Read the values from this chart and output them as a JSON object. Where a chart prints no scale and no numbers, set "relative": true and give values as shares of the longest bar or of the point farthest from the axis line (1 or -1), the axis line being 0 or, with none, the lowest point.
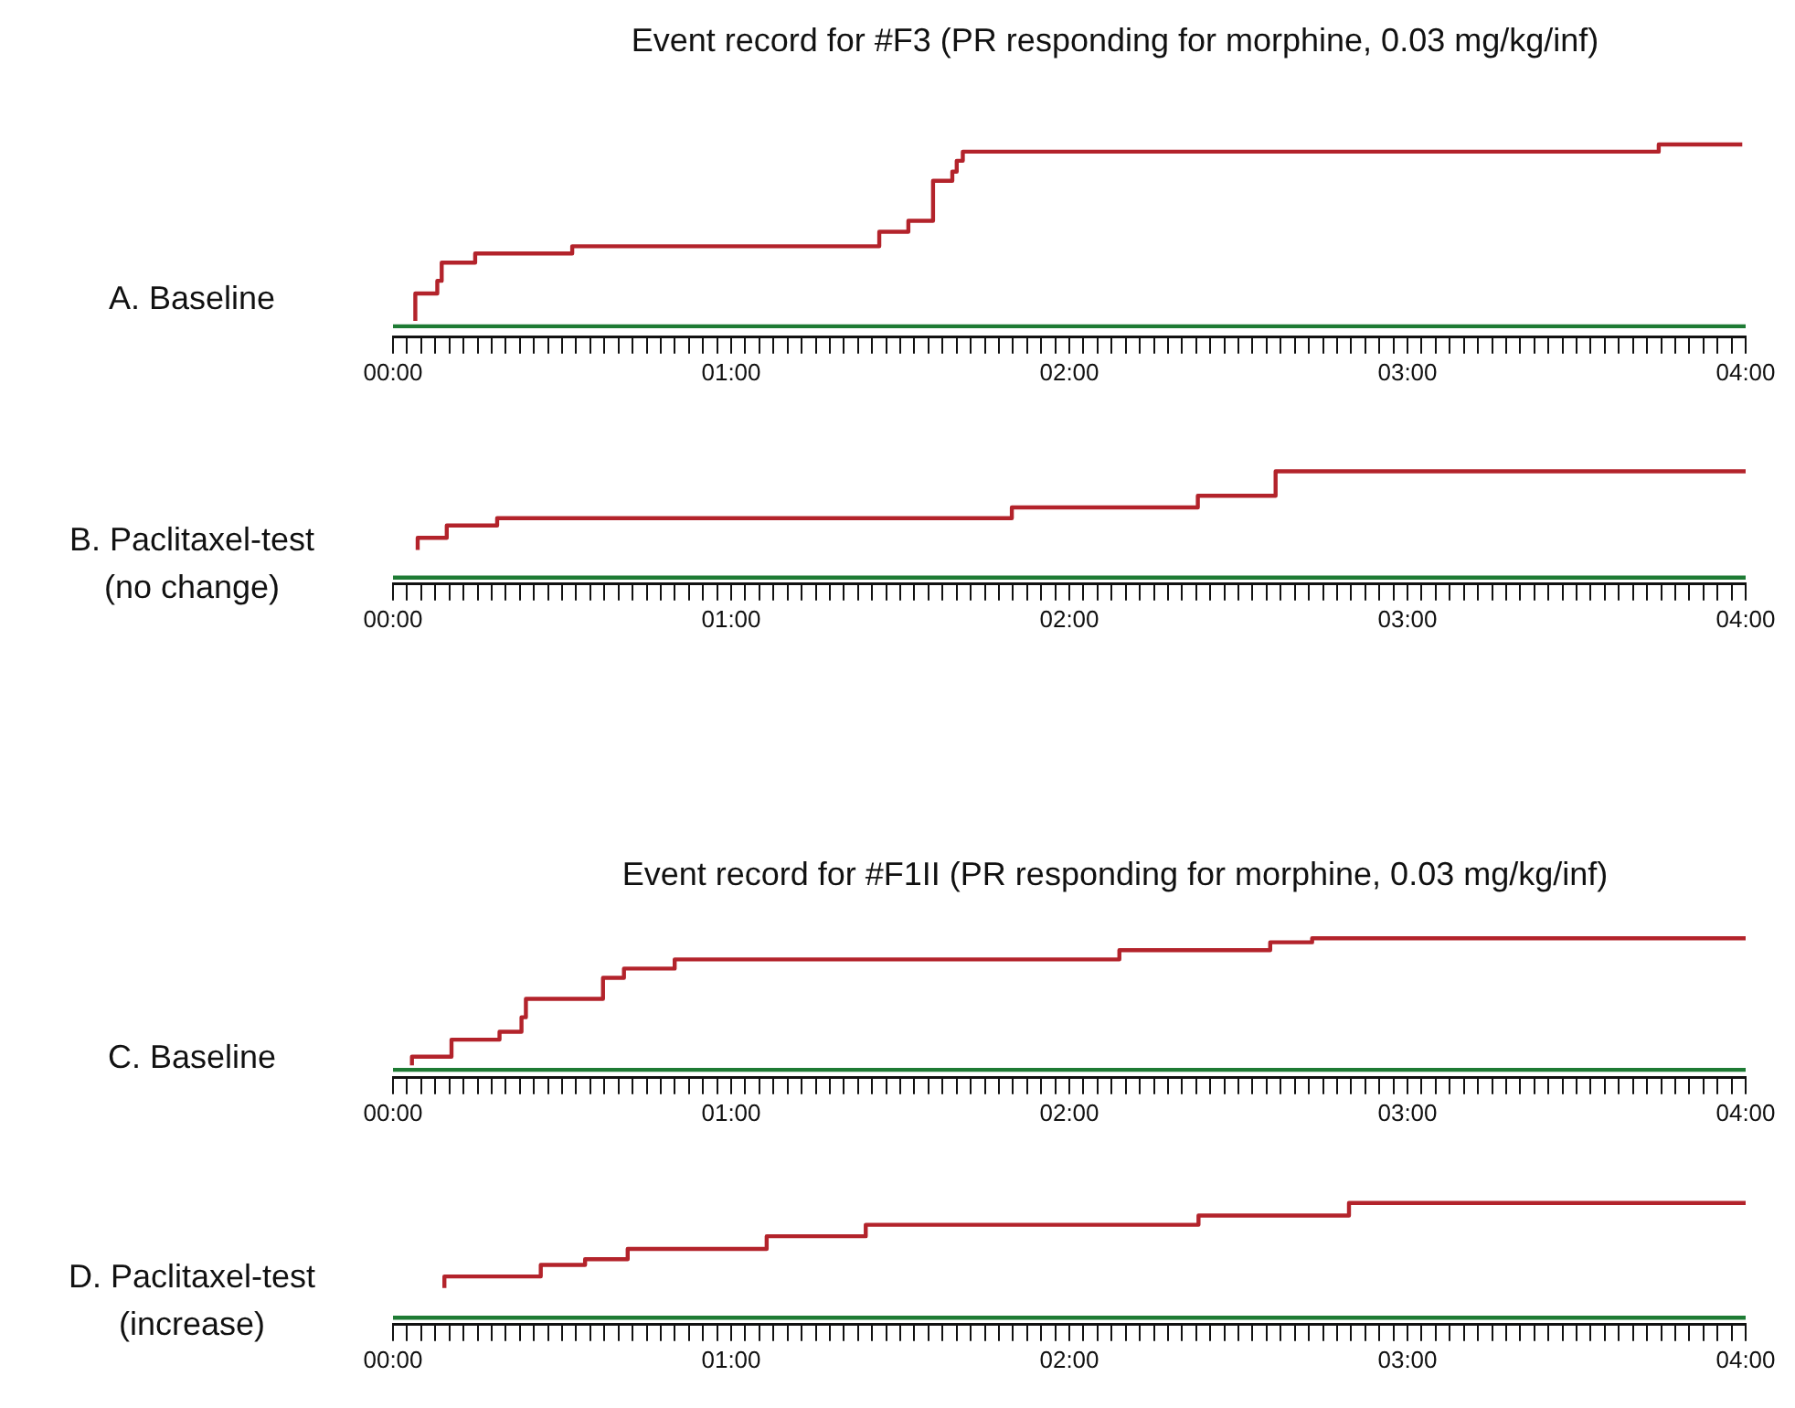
{
  "chart_data": [
    {
      "type": "step",
      "title": "Event record for #F3 (PR responding for morphine, 0.03 mg/kg/inf)",
      "ylabel": "A. Baseline",
      "relative": true,
      "xlim": [
        0,
        4
      ],
      "grid": false,
      "legend": false,
      "marker": "none",
      "xticks": [
        {
          "value": 0,
          "label": "00:00"
        },
        {
          "value": 0.0417,
          "label": null
        },
        {
          "value": 0.0833,
          "label": null
        },
        {
          "value": 0.125,
          "label": null
        },
        {
          "value": 0.1667,
          "label": null
        },
        {
          "value": 0.2083,
          "label": null
        },
        {
          "value": 0.25,
          "label": null
        },
        {
          "value": 0.2917,
          "label": null
        },
        {
          "value": 0.3333,
          "label": null
        },
        {
          "value": 0.375,
          "label": null
        },
        {
          "value": 0.4167,
          "label": null
        },
        {
          "value": 0.4583,
          "label": null
        },
        {
          "value": 0.5,
          "label": null
        },
        {
          "value": 0.5417,
          "label": null
        },
        {
          "value": 0.5833,
          "label": null
        },
        {
          "value": 0.625,
          "label": null
        },
        {
          "value": 0.6667,
          "label": null
        },
        {
          "value": 0.7083,
          "label": null
        },
        {
          "value": 0.75,
          "label": null
        },
        {
          "value": 0.7917,
          "label": null
        },
        {
          "value": 0.8333,
          "label": null
        },
        {
          "value": 0.875,
          "label": null
        },
        {
          "value": 0.9167,
          "label": null
        },
        {
          "value": 0.9583,
          "label": null
        },
        {
          "value": 1,
          "label": "01:00"
        },
        {
          "value": 1.0417,
          "label": null
        },
        {
          "value": 1.0833,
          "label": null
        },
        {
          "value": 1.125,
          "label": null
        },
        {
          "value": 1.1667,
          "label": null
        },
        {
          "value": 1.2083,
          "label": null
        },
        {
          "value": 1.25,
          "label": null
        },
        {
          "value": 1.2917,
          "label": null
        },
        {
          "value": 1.3333,
          "label": null
        },
        {
          "value": 1.375,
          "label": null
        },
        {
          "value": 1.4167,
          "label": null
        },
        {
          "value": 1.4583,
          "label": null
        },
        {
          "value": 1.5,
          "label": null
        },
        {
          "value": 1.5417,
          "label": null
        },
        {
          "value": 1.5833,
          "label": null
        },
        {
          "value": 1.625,
          "label": null
        },
        {
          "value": 1.6667,
          "label": null
        },
        {
          "value": 1.7083,
          "label": null
        },
        {
          "value": 1.75,
          "label": null
        },
        {
          "value": 1.7917,
          "label": null
        },
        {
          "value": 1.8333,
          "label": null
        },
        {
          "value": 1.875,
          "label": null
        },
        {
          "value": 1.9167,
          "label": null
        },
        {
          "value": 1.9583,
          "label": null
        },
        {
          "value": 2,
          "label": "02:00"
        },
        {
          "value": 2.0417,
          "label": null
        },
        {
          "value": 2.0833,
          "label": null
        },
        {
          "value": 2.125,
          "label": null
        },
        {
          "value": 2.1667,
          "label": null
        },
        {
          "value": 2.2083,
          "label": null
        },
        {
          "value": 2.25,
          "label": null
        },
        {
          "value": 2.2917,
          "label": null
        },
        {
          "value": 2.3333,
          "label": null
        },
        {
          "value": 2.375,
          "label": null
        },
        {
          "value": 2.4167,
          "label": null
        },
        {
          "value": 2.4583,
          "label": null
        },
        {
          "value": 2.5,
          "label": null
        },
        {
          "value": 2.5417,
          "label": null
        },
        {
          "value": 2.5833,
          "label": null
        },
        {
          "value": 2.625,
          "label": null
        },
        {
          "value": 2.6667,
          "label": null
        },
        {
          "value": 2.7083,
          "label": null
        },
        {
          "value": 2.75,
          "label": null
        },
        {
          "value": 2.7917,
          "label": null
        },
        {
          "value": 2.8333,
          "label": null
        },
        {
          "value": 2.875,
          "label": null
        },
        {
          "value": 2.9167,
          "label": null
        },
        {
          "value": 2.9583,
          "label": null
        },
        {
          "value": 3,
          "label": "03:00"
        },
        {
          "value": 3.0417,
          "label": null
        },
        {
          "value": 3.0833,
          "label": null
        },
        {
          "value": 3.125,
          "label": null
        },
        {
          "value": 3.1667,
          "label": null
        },
        {
          "value": 3.2083,
          "label": null
        },
        {
          "value": 3.25,
          "label": null
        },
        {
          "value": 3.2917,
          "label": null
        },
        {
          "value": 3.3333,
          "label": null
        },
        {
          "value": 3.375,
          "label": null
        },
        {
          "value": 3.4167,
          "label": null
        },
        {
          "value": 3.4583,
          "label": null
        },
        {
          "value": 3.5,
          "label": null
        },
        {
          "value": 3.5417,
          "label": null
        },
        {
          "value": 3.5833,
          "label": null
        },
        {
          "value": 3.625,
          "label": null
        },
        {
          "value": 3.6667,
          "label": null
        },
        {
          "value": 3.7083,
          "label": null
        },
        {
          "value": 3.75,
          "label": null
        },
        {
          "value": 3.7917,
          "label": null
        },
        {
          "value": 3.8333,
          "label": null
        },
        {
          "value": 3.875,
          "label": null
        },
        {
          "value": 3.9167,
          "label": null
        },
        {
          "value": 3.9583,
          "label": null
        },
        {
          "value": 4,
          "label": "04:00"
        }
      ],
      "series": [
        {
          "type": "line",
          "color": "#1e7b34",
          "x": [
            0,
            4
          ],
          "values": [
            0,
            0
          ]
        },
        {
          "color": "#b3232b",
          "x": [
            0.066,
            0.131,
            0.144,
            0.243,
            0.53,
            1.438,
            1.524,
            1.597,
            1.654,
            1.667,
            1.685,
            3.743,
            3.946,
            3.99
          ],
          "values": [
            0.03,
            0.18,
            0.25,
            0.35,
            0.4,
            0.44,
            0.52,
            0.58,
            0.8,
            0.85,
            0.91,
            0.96,
            1,
            1
          ]
        }
      ]
    },
    {
      "type": "step",
      "ylabel": "B. Paclitaxel-test\n(no change)",
      "relative": true,
      "xlim": [
        0,
        4
      ],
      "grid": false,
      "legend": false,
      "marker": "none",
      "xticks": [
        {
          "value": 0,
          "label": "00:00"
        },
        {
          "value": 0.0417,
          "label": null
        },
        {
          "value": 0.0833,
          "label": null
        },
        {
          "value": 0.125,
          "label": null
        },
        {
          "value": 0.1667,
          "label": null
        },
        {
          "value": 0.2083,
          "label": null
        },
        {
          "value": 0.25,
          "label": null
        },
        {
          "value": 0.2917,
          "label": null
        },
        {
          "value": 0.3333,
          "label": null
        },
        {
          "value": 0.375,
          "label": null
        },
        {
          "value": 0.4167,
          "label": null
        },
        {
          "value": 0.4583,
          "label": null
        },
        {
          "value": 0.5,
          "label": null
        },
        {
          "value": 0.5417,
          "label": null
        },
        {
          "value": 0.5833,
          "label": null
        },
        {
          "value": 0.625,
          "label": null
        },
        {
          "value": 0.6667,
          "label": null
        },
        {
          "value": 0.7083,
          "label": null
        },
        {
          "value": 0.75,
          "label": null
        },
        {
          "value": 0.7917,
          "label": null
        },
        {
          "value": 0.8333,
          "label": null
        },
        {
          "value": 0.875,
          "label": null
        },
        {
          "value": 0.9167,
          "label": null
        },
        {
          "value": 0.9583,
          "label": null
        },
        {
          "value": 1,
          "label": "01:00"
        },
        {
          "value": 1.0417,
          "label": null
        },
        {
          "value": 1.0833,
          "label": null
        },
        {
          "value": 1.125,
          "label": null
        },
        {
          "value": 1.1667,
          "label": null
        },
        {
          "value": 1.2083,
          "label": null
        },
        {
          "value": 1.25,
          "label": null
        },
        {
          "value": 1.2917,
          "label": null
        },
        {
          "value": 1.3333,
          "label": null
        },
        {
          "value": 1.375,
          "label": null
        },
        {
          "value": 1.4167,
          "label": null
        },
        {
          "value": 1.4583,
          "label": null
        },
        {
          "value": 1.5,
          "label": null
        },
        {
          "value": 1.5417,
          "label": null
        },
        {
          "value": 1.5833,
          "label": null
        },
        {
          "value": 1.625,
          "label": null
        },
        {
          "value": 1.6667,
          "label": null
        },
        {
          "value": 1.7083,
          "label": null
        },
        {
          "value": 1.75,
          "label": null
        },
        {
          "value": 1.7917,
          "label": null
        },
        {
          "value": 1.8333,
          "label": null
        },
        {
          "value": 1.875,
          "label": null
        },
        {
          "value": 1.9167,
          "label": null
        },
        {
          "value": 1.9583,
          "label": null
        },
        {
          "value": 2,
          "label": "02:00"
        },
        {
          "value": 2.0417,
          "label": null
        },
        {
          "value": 2.0833,
          "label": null
        },
        {
          "value": 2.125,
          "label": null
        },
        {
          "value": 2.1667,
          "label": null
        },
        {
          "value": 2.2083,
          "label": null
        },
        {
          "value": 2.25,
          "label": null
        },
        {
          "value": 2.2917,
          "label": null
        },
        {
          "value": 2.3333,
          "label": null
        },
        {
          "value": 2.375,
          "label": null
        },
        {
          "value": 2.4167,
          "label": null
        },
        {
          "value": 2.4583,
          "label": null
        },
        {
          "value": 2.5,
          "label": null
        },
        {
          "value": 2.5417,
          "label": null
        },
        {
          "value": 2.5833,
          "label": null
        },
        {
          "value": 2.625,
          "label": null
        },
        {
          "value": 2.6667,
          "label": null
        },
        {
          "value": 2.7083,
          "label": null
        },
        {
          "value": 2.75,
          "label": null
        },
        {
          "value": 2.7917,
          "label": null
        },
        {
          "value": 2.8333,
          "label": null
        },
        {
          "value": 2.875,
          "label": null
        },
        {
          "value": 2.9167,
          "label": null
        },
        {
          "value": 2.9583,
          "label": null
        },
        {
          "value": 3,
          "label": "03:00"
        },
        {
          "value": 3.0417,
          "label": null
        },
        {
          "value": 3.0833,
          "label": null
        },
        {
          "value": 3.125,
          "label": null
        },
        {
          "value": 3.1667,
          "label": null
        },
        {
          "value": 3.2083,
          "label": null
        },
        {
          "value": 3.25,
          "label": null
        },
        {
          "value": 3.2917,
          "label": null
        },
        {
          "value": 3.3333,
          "label": null
        },
        {
          "value": 3.375,
          "label": null
        },
        {
          "value": 3.4167,
          "label": null
        },
        {
          "value": 3.4583,
          "label": null
        },
        {
          "value": 3.5,
          "label": null
        },
        {
          "value": 3.5417,
          "label": null
        },
        {
          "value": 3.5833,
          "label": null
        },
        {
          "value": 3.625,
          "label": null
        },
        {
          "value": 3.6667,
          "label": null
        },
        {
          "value": 3.7083,
          "label": null
        },
        {
          "value": 3.75,
          "label": null
        },
        {
          "value": 3.7917,
          "label": null
        },
        {
          "value": 3.8333,
          "label": null
        },
        {
          "value": 3.875,
          "label": null
        },
        {
          "value": 3.9167,
          "label": null
        },
        {
          "value": 3.9583,
          "label": null
        },
        {
          "value": 4,
          "label": "04:00"
        }
      ],
      "series": [
        {
          "type": "line",
          "color": "#1e7b34",
          "x": [
            0,
            4
          ],
          "values": [
            0,
            0
          ]
        },
        {
          "color": "#b3232b",
          "x": [
            0.073,
            0.159,
            0.308,
            1.83,
            2.38,
            2.61,
            2.78,
            4
          ],
          "values": [
            0.26,
            0.375,
            0.49,
            0.56,
            0.66,
            0.77,
            1,
            1
          ]
        }
      ]
    },
    {
      "type": "step",
      "title": "Event record for #F1II (PR responding for morphine, 0.03 mg/kg/inf)",
      "ylabel": "C. Baseline",
      "relative": true,
      "xlim": [
        0,
        4
      ],
      "grid": false,
      "legend": false,
      "marker": "none",
      "xticks": [
        {
          "value": 0,
          "label": "00:00"
        },
        {
          "value": 0.0417,
          "label": null
        },
        {
          "value": 0.0833,
          "label": null
        },
        {
          "value": 0.125,
          "label": null
        },
        {
          "value": 0.1667,
          "label": null
        },
        {
          "value": 0.2083,
          "label": null
        },
        {
          "value": 0.25,
          "label": null
        },
        {
          "value": 0.2917,
          "label": null
        },
        {
          "value": 0.3333,
          "label": null
        },
        {
          "value": 0.375,
          "label": null
        },
        {
          "value": 0.4167,
          "label": null
        },
        {
          "value": 0.4583,
          "label": null
        },
        {
          "value": 0.5,
          "label": null
        },
        {
          "value": 0.5417,
          "label": null
        },
        {
          "value": 0.5833,
          "label": null
        },
        {
          "value": 0.625,
          "label": null
        },
        {
          "value": 0.6667,
          "label": null
        },
        {
          "value": 0.7083,
          "label": null
        },
        {
          "value": 0.75,
          "label": null
        },
        {
          "value": 0.7917,
          "label": null
        },
        {
          "value": 0.8333,
          "label": null
        },
        {
          "value": 0.875,
          "label": null
        },
        {
          "value": 0.9167,
          "label": null
        },
        {
          "value": 0.9583,
          "label": null
        },
        {
          "value": 1,
          "label": "01:00"
        },
        {
          "value": 1.0417,
          "label": null
        },
        {
          "value": 1.0833,
          "label": null
        },
        {
          "value": 1.125,
          "label": null
        },
        {
          "value": 1.1667,
          "label": null
        },
        {
          "value": 1.2083,
          "label": null
        },
        {
          "value": 1.25,
          "label": null
        },
        {
          "value": 1.2917,
          "label": null
        },
        {
          "value": 1.3333,
          "label": null
        },
        {
          "value": 1.375,
          "label": null
        },
        {
          "value": 1.4167,
          "label": null
        },
        {
          "value": 1.4583,
          "label": null
        },
        {
          "value": 1.5,
          "label": null
        },
        {
          "value": 1.5417,
          "label": null
        },
        {
          "value": 1.5833,
          "label": null
        },
        {
          "value": 1.625,
          "label": null
        },
        {
          "value": 1.6667,
          "label": null
        },
        {
          "value": 1.7083,
          "label": null
        },
        {
          "value": 1.75,
          "label": null
        },
        {
          "value": 1.7917,
          "label": null
        },
        {
          "value": 1.8333,
          "label": null
        },
        {
          "value": 1.875,
          "label": null
        },
        {
          "value": 1.9167,
          "label": null
        },
        {
          "value": 1.9583,
          "label": null
        },
        {
          "value": 2,
          "label": "02:00"
        },
        {
          "value": 2.0417,
          "label": null
        },
        {
          "value": 2.0833,
          "label": null
        },
        {
          "value": 2.125,
          "label": null
        },
        {
          "value": 2.1667,
          "label": null
        },
        {
          "value": 2.2083,
          "label": null
        },
        {
          "value": 2.25,
          "label": null
        },
        {
          "value": 2.2917,
          "label": null
        },
        {
          "value": 2.3333,
          "label": null
        },
        {
          "value": 2.375,
          "label": null
        },
        {
          "value": 2.4167,
          "label": null
        },
        {
          "value": 2.4583,
          "label": null
        },
        {
          "value": 2.5,
          "label": null
        },
        {
          "value": 2.5417,
          "label": null
        },
        {
          "value": 2.5833,
          "label": null
        },
        {
          "value": 2.625,
          "label": null
        },
        {
          "value": 2.6667,
          "label": null
        },
        {
          "value": 2.7083,
          "label": null
        },
        {
          "value": 2.75,
          "label": null
        },
        {
          "value": 2.7917,
          "label": null
        },
        {
          "value": 2.8333,
          "label": null
        },
        {
          "value": 2.875,
          "label": null
        },
        {
          "value": 2.9167,
          "label": null
        },
        {
          "value": 2.9583,
          "label": null
        },
        {
          "value": 3,
          "label": "03:00"
        },
        {
          "value": 3.0417,
          "label": null
        },
        {
          "value": 3.0833,
          "label": null
        },
        {
          "value": 3.125,
          "label": null
        },
        {
          "value": 3.1667,
          "label": null
        },
        {
          "value": 3.2083,
          "label": null
        },
        {
          "value": 3.25,
          "label": null
        },
        {
          "value": 3.2917,
          "label": null
        },
        {
          "value": 3.3333,
          "label": null
        },
        {
          "value": 3.375,
          "label": null
        },
        {
          "value": 3.4167,
          "label": null
        },
        {
          "value": 3.4583,
          "label": null
        },
        {
          "value": 3.5,
          "label": null
        },
        {
          "value": 3.5417,
          "label": null
        },
        {
          "value": 3.5833,
          "label": null
        },
        {
          "value": 3.625,
          "label": null
        },
        {
          "value": 3.6667,
          "label": null
        },
        {
          "value": 3.7083,
          "label": null
        },
        {
          "value": 3.75,
          "label": null
        },
        {
          "value": 3.7917,
          "label": null
        },
        {
          "value": 3.8333,
          "label": null
        },
        {
          "value": 3.875,
          "label": null
        },
        {
          "value": 3.9167,
          "label": null
        },
        {
          "value": 3.9583,
          "label": null
        },
        {
          "value": 4,
          "label": "04:00"
        }
      ],
      "series": [
        {
          "type": "line",
          "color": "#1e7b34",
          "x": [
            0,
            4
          ],
          "values": [
            0,
            0
          ]
        },
        {
          "color": "#b3232b",
          "x": [
            0.056,
            0.173,
            0.315,
            0.38,
            0.393,
            0.621,
            0.683,
            0.833,
            2.148,
            2.594,
            2.718,
            3.508,
            4
          ],
          "values": [
            0.035,
            0.1,
            0.23,
            0.29,
            0.4,
            0.54,
            0.7,
            0.77,
            0.84,
            0.91,
            0.97,
            1,
            1
          ]
        }
      ]
    },
    {
      "type": "step",
      "ylabel": "D. Paclitaxel-test\n(increase)",
      "relative": true,
      "xlim": [
        0,
        4
      ],
      "grid": false,
      "legend": false,
      "marker": "none",
      "xticks": [
        {
          "value": 0,
          "label": "00:00"
        },
        {
          "value": 0.0417,
          "label": null
        },
        {
          "value": 0.0833,
          "label": null
        },
        {
          "value": 0.125,
          "label": null
        },
        {
          "value": 0.1667,
          "label": null
        },
        {
          "value": 0.2083,
          "label": null
        },
        {
          "value": 0.25,
          "label": null
        },
        {
          "value": 0.2917,
          "label": null
        },
        {
          "value": 0.3333,
          "label": null
        },
        {
          "value": 0.375,
          "label": null
        },
        {
          "value": 0.4167,
          "label": null
        },
        {
          "value": 0.4583,
          "label": null
        },
        {
          "value": 0.5,
          "label": null
        },
        {
          "value": 0.5417,
          "label": null
        },
        {
          "value": 0.5833,
          "label": null
        },
        {
          "value": 0.625,
          "label": null
        },
        {
          "value": 0.6667,
          "label": null
        },
        {
          "value": 0.7083,
          "label": null
        },
        {
          "value": 0.75,
          "label": null
        },
        {
          "value": 0.7917,
          "label": null
        },
        {
          "value": 0.8333,
          "label": null
        },
        {
          "value": 0.875,
          "label": null
        },
        {
          "value": 0.9167,
          "label": null
        },
        {
          "value": 0.9583,
          "label": null
        },
        {
          "value": 1,
          "label": "01:00"
        },
        {
          "value": 1.0417,
          "label": null
        },
        {
          "value": 1.0833,
          "label": null
        },
        {
          "value": 1.125,
          "label": null
        },
        {
          "value": 1.1667,
          "label": null
        },
        {
          "value": 1.2083,
          "label": null
        },
        {
          "value": 1.25,
          "label": null
        },
        {
          "value": 1.2917,
          "label": null
        },
        {
          "value": 1.3333,
          "label": null
        },
        {
          "value": 1.375,
          "label": null
        },
        {
          "value": 1.4167,
          "label": null
        },
        {
          "value": 1.4583,
          "label": null
        },
        {
          "value": 1.5,
          "label": null
        },
        {
          "value": 1.5417,
          "label": null
        },
        {
          "value": 1.5833,
          "label": null
        },
        {
          "value": 1.625,
          "label": null
        },
        {
          "value": 1.6667,
          "label": null
        },
        {
          "value": 1.7083,
          "label": null
        },
        {
          "value": 1.75,
          "label": null
        },
        {
          "value": 1.7917,
          "label": null
        },
        {
          "value": 1.8333,
          "label": null
        },
        {
          "value": 1.875,
          "label": null
        },
        {
          "value": 1.9167,
          "label": null
        },
        {
          "value": 1.9583,
          "label": null
        },
        {
          "value": 2,
          "label": "02:00"
        },
        {
          "value": 2.0417,
          "label": null
        },
        {
          "value": 2.0833,
          "label": null
        },
        {
          "value": 2.125,
          "label": null
        },
        {
          "value": 2.1667,
          "label": null
        },
        {
          "value": 2.2083,
          "label": null
        },
        {
          "value": 2.25,
          "label": null
        },
        {
          "value": 2.2917,
          "label": null
        },
        {
          "value": 2.3333,
          "label": null
        },
        {
          "value": 2.375,
          "label": null
        },
        {
          "value": 2.4167,
          "label": null
        },
        {
          "value": 2.4583,
          "label": null
        },
        {
          "value": 2.5,
          "label": null
        },
        {
          "value": 2.5417,
          "label": null
        },
        {
          "value": 2.5833,
          "label": null
        },
        {
          "value": 2.625,
          "label": null
        },
        {
          "value": 2.6667,
          "label": null
        },
        {
          "value": 2.7083,
          "label": null
        },
        {
          "value": 2.75,
          "label": null
        },
        {
          "value": 2.7917,
          "label": null
        },
        {
          "value": 2.8333,
          "label": null
        },
        {
          "value": 2.875,
          "label": null
        },
        {
          "value": 2.9167,
          "label": null
        },
        {
          "value": 2.9583,
          "label": null
        },
        {
          "value": 3,
          "label": "03:00"
        },
        {
          "value": 3.0417,
          "label": null
        },
        {
          "value": 3.0833,
          "label": null
        },
        {
          "value": 3.125,
          "label": null
        },
        {
          "value": 3.1667,
          "label": null
        },
        {
          "value": 3.2083,
          "label": null
        },
        {
          "value": 3.25,
          "label": null
        },
        {
          "value": 3.2917,
          "label": null
        },
        {
          "value": 3.3333,
          "label": null
        },
        {
          "value": 3.375,
          "label": null
        },
        {
          "value": 3.4167,
          "label": null
        },
        {
          "value": 3.4583,
          "label": null
        },
        {
          "value": 3.5,
          "label": null
        },
        {
          "value": 3.5417,
          "label": null
        },
        {
          "value": 3.5833,
          "label": null
        },
        {
          "value": 3.625,
          "label": null
        },
        {
          "value": 3.6667,
          "label": null
        },
        {
          "value": 3.7083,
          "label": null
        },
        {
          "value": 3.75,
          "label": null
        },
        {
          "value": 3.7917,
          "label": null
        },
        {
          "value": 3.8333,
          "label": null
        },
        {
          "value": 3.875,
          "label": null
        },
        {
          "value": 3.9167,
          "label": null
        },
        {
          "value": 3.9583,
          "label": null
        },
        {
          "value": 4,
          "label": "04:00"
        }
      ],
      "series": [
        {
          "type": "line",
          "color": "#1e7b34",
          "x": [
            0,
            4
          ],
          "values": [
            0,
            0
          ]
        },
        {
          "color": "#b3232b",
          "x": [
            0.152,
            0.437,
            0.568,
            0.694,
            1.105,
            1.398,
            2.382,
            2.827,
            3.005,
            4
          ],
          "values": [
            0.26,
            0.36,
            0.46,
            0.51,
            0.6,
            0.71,
            0.81,
            0.89,
            1,
            1
          ]
        }
      ]
    }
  ]
}
